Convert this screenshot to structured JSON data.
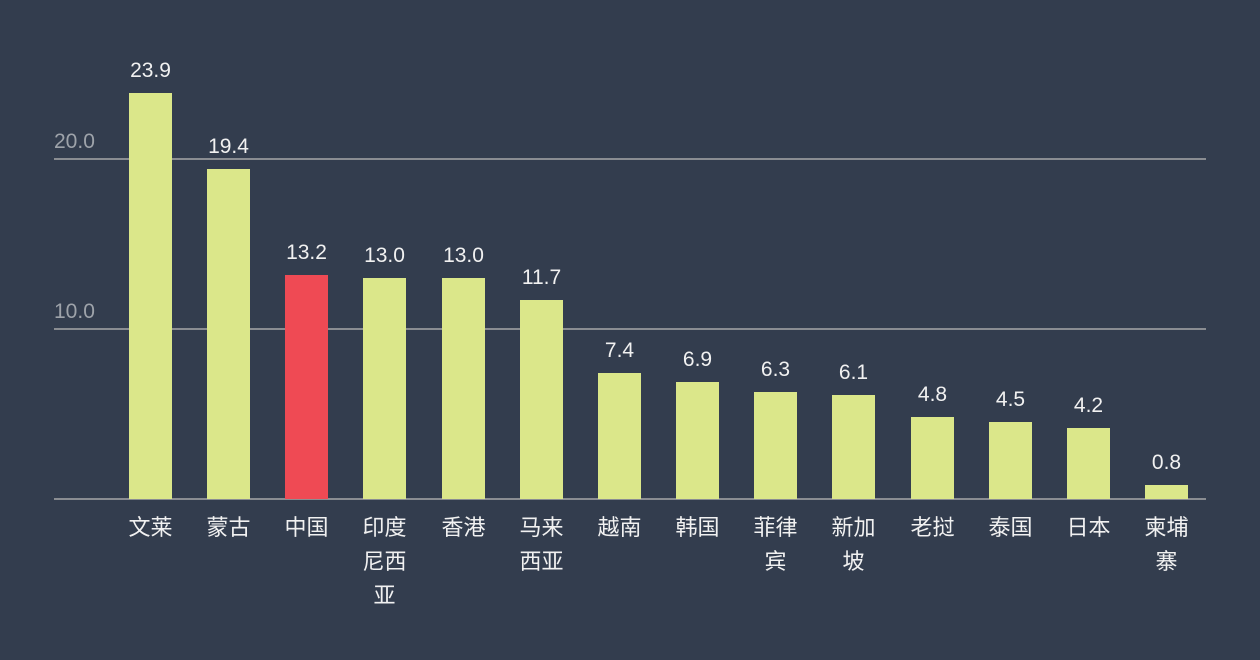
{
  "chart_data": {
    "type": "bar",
    "title": "",
    "xlabel": "",
    "ylabel": "",
    "ylim": [
      0,
      25
    ],
    "yticks": [
      "10.0",
      "20.0"
    ],
    "grid": true,
    "legend": null,
    "categories": [
      "文莱",
      "蒙古",
      "中国",
      "印度尼西亚",
      "香港",
      "马来西亚",
      "越南",
      "韩国",
      "菲律宾",
      "新加坡",
      "老挝",
      "泰国",
      "日本",
      "柬埔寨"
    ],
    "values": [
      23.9,
      19.4,
      13.2,
      13.0,
      13.0,
      11.7,
      7.4,
      6.9,
      6.3,
      6.1,
      4.8,
      4.5,
      4.2,
      0.8
    ],
    "value_labels": [
      "23.9",
      "19.4",
      "13.2",
      "13.0",
      "13.0",
      "11.7",
      "7.4",
      "6.9",
      "6.3",
      "6.1",
      "4.8",
      "4.5",
      "4.2",
      "0.8"
    ],
    "highlight": {
      "category": "中国",
      "color": "#ef4a54"
    },
    "colors": {
      "bar": "#dbe78a",
      "highlight": "#ef4a54",
      "background": "#333d4e",
      "grid": "#8a8d92"
    }
  }
}
